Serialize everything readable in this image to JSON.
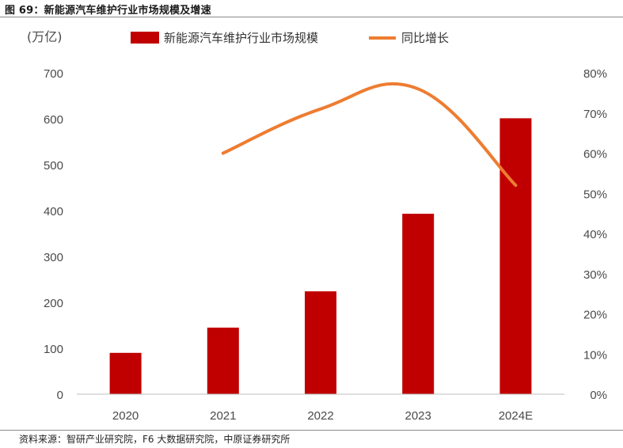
{
  "header": {
    "figure_label": "图 69：",
    "figure_title": "新能源汽车维护行业市场规模及增速"
  },
  "source": {
    "text": "资料来源：智研产业研究院，F6 大数据研究院，中原证券研究所"
  },
  "colors": {
    "bar": "#C00000",
    "line": "#ED7D31",
    "axis": "#BFBFBF",
    "tick_text": "#4A4A4A"
  },
  "chart_data": {
    "type": "bar",
    "title": "新能源汽车维护行业市场规模及增速",
    "categories": [
      "2020",
      "2021",
      "2022",
      "2023",
      "2024E"
    ],
    "ylabel": "(万亿)",
    "ylim": [
      0,
      700
    ],
    "yticks": [
      "0",
      "100",
      "200",
      "300",
      "400",
      "500",
      "600",
      "700"
    ],
    "y2lim": [
      0,
      80
    ],
    "y2ticks": [
      "0%",
      "10%",
      "20%",
      "30%",
      "40%",
      "50%",
      "60%",
      "70%",
      "80%"
    ],
    "legend_position": "top",
    "grid": false,
    "series": [
      {
        "name": "新能源汽车维护行业市场规模",
        "type": "bar",
        "axis": "left",
        "values": [
          90,
          145,
          224,
          393,
          601
        ]
      },
      {
        "name": "同比增长",
        "type": "line",
        "axis": "right",
        "values": [
          null,
          60,
          71,
          76,
          52
        ]
      }
    ]
  }
}
